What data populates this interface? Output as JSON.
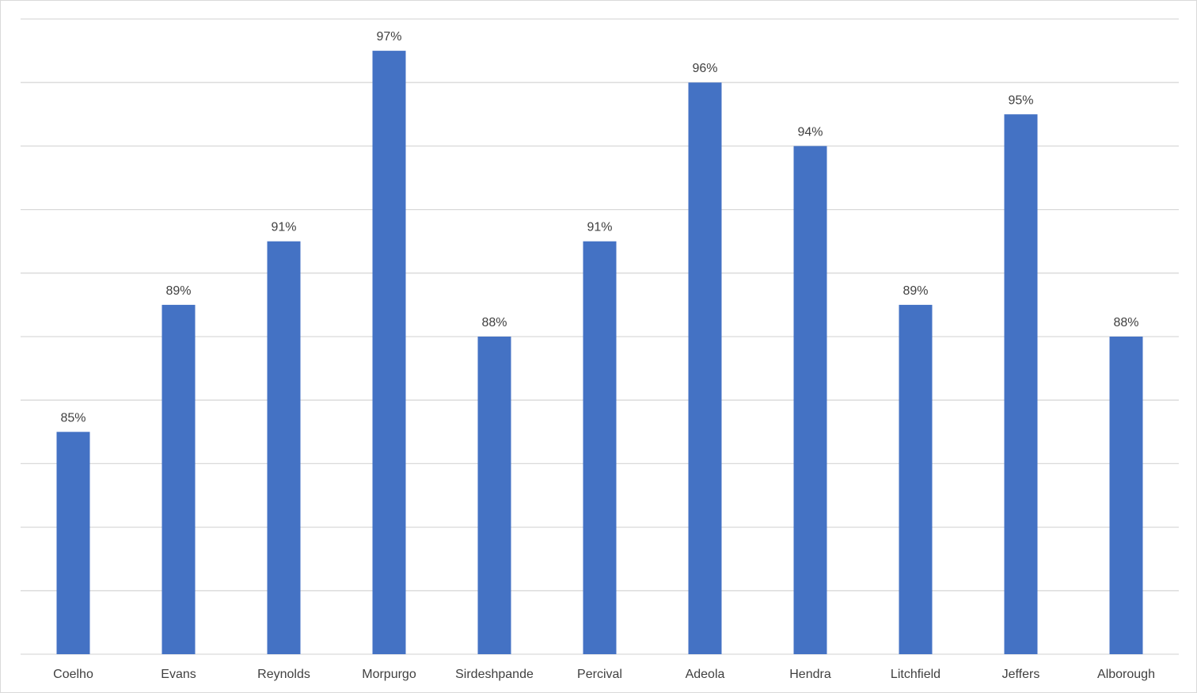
{
  "chart_data": {
    "type": "bar",
    "title": "",
    "xlabel": "",
    "ylabel": "",
    "categories": [
      "Coelho",
      "Evans",
      "Reynolds",
      "Morpurgo",
      "Sirdeshpande",
      "Percival",
      "Adeola",
      "Hendra",
      "Litchfield",
      "Jeffers",
      "Alborough"
    ],
    "values": [
      85,
      89,
      91,
      97,
      88,
      91,
      96,
      94,
      89,
      95,
      88
    ],
    "value_labels": [
      "85%",
      "89%",
      "91%",
      "97%",
      "88%",
      "91%",
      "96%",
      "94%",
      "89%",
      "95%",
      "88%"
    ],
    "ylim": [
      78,
      98
    ],
    "y_major_unit": 2,
    "y_axis_labels_shown": false,
    "grid": true,
    "legend": "none",
    "bar_color": "#4472c4",
    "gridline_color": "#d9d9d9",
    "label_color": "#404040"
  }
}
